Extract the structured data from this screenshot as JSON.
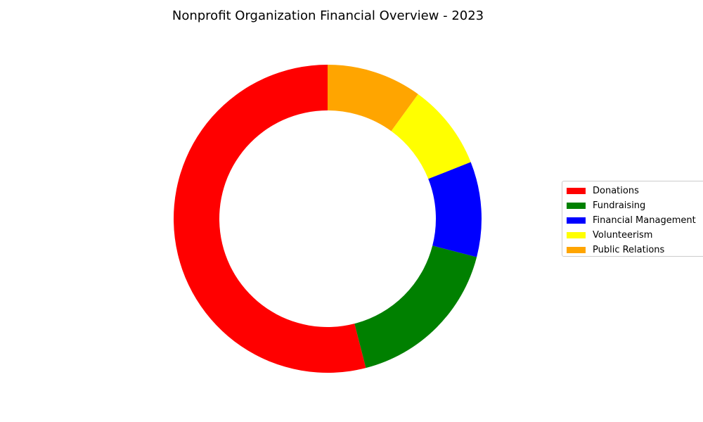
{
  "chart_data": {
    "type": "pie",
    "style": "donut",
    "title": "Nonprofit Organization Financial Overview - 2023",
    "start_angle_deg": 90,
    "direction": "counterclockwise",
    "legend_position": "right",
    "slices": [
      {
        "label": "Donations",
        "value": 54,
        "color": "#ff0000"
      },
      {
        "label": "Fundraising",
        "value": 17,
        "color": "#008000"
      },
      {
        "label": "Financial Management",
        "value": 10,
        "color": "#0000ff"
      },
      {
        "label": "Volunteerism",
        "value": 9,
        "color": "#ffff00"
      },
      {
        "label": "Public Relations",
        "value": 10,
        "color": "#ffa500"
      }
    ]
  }
}
